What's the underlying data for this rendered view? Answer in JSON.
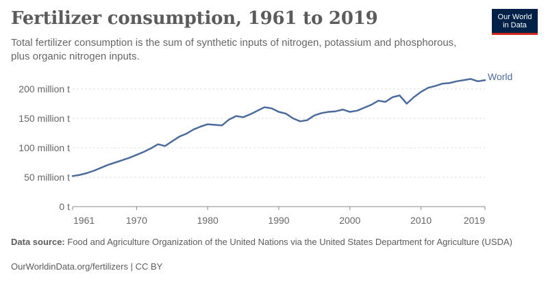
{
  "title": "Fertilizer consumption, 1961 to 2019",
  "subtitle": "Total fertilizer consumption is the sum of synthetic inputs of nitrogen, potassium and phosphorous, plus organic nitrogen inputs.",
  "logo": {
    "line1": "Our World",
    "line2": "in Data"
  },
  "footer": {
    "source_label": "Data source:",
    "source_text": "Food and Agriculture Organization of the United Nations via the United States Department for Agriculture (USDA)",
    "url": "OurWorldinData.org/fertilizers",
    "license": "CC BY"
  },
  "colors": {
    "series": "#4c6a9c",
    "grid": "#dddddd",
    "axis": "#888888",
    "text": "#5b5b5b"
  },
  "chart_data": {
    "type": "line",
    "title": "Fertilizer consumption, 1961 to 2019",
    "xlabel": "",
    "ylabel": "",
    "xlim": [
      1961,
      2019
    ],
    "ylim": [
      0,
      200
    ],
    "y_ticks": [
      0,
      50,
      100,
      150,
      200
    ],
    "y_tick_labels": [
      "0 t",
      "50 million t",
      "100 million t",
      "150 million t",
      "200 million t"
    ],
    "x_ticks": [
      1961,
      1970,
      1980,
      1990,
      2000,
      2010,
      2019
    ],
    "x_tick_labels": [
      "1961",
      "1970",
      "1980",
      "1990",
      "2000",
      "2010",
      "2019"
    ],
    "grid": "horizontal dashed",
    "series": [
      {
        "name": "World",
        "x": [
          1961,
          1962,
          1963,
          1964,
          1965,
          1966,
          1967,
          1968,
          1969,
          1970,
          1971,
          1972,
          1973,
          1974,
          1975,
          1976,
          1977,
          1978,
          1979,
          1980,
          1981,
          1982,
          1983,
          1984,
          1985,
          1986,
          1987,
          1988,
          1989,
          1990,
          1991,
          1992,
          1993,
          1994,
          1995,
          1996,
          1997,
          1998,
          1999,
          2000,
          2001,
          2002,
          2003,
          2004,
          2005,
          2006,
          2007,
          2008,
          2009,
          2010,
          2011,
          2012,
          2013,
          2014,
          2015,
          2016,
          2017,
          2018,
          2019
        ],
        "values": [
          52,
          54,
          57,
          61,
          66,
          71,
          75,
          79,
          83,
          88,
          93,
          99,
          106,
          103,
          111,
          119,
          124,
          131,
          136,
          140,
          139,
          138,
          148,
          154,
          152,
          157,
          163,
          169,
          167,
          161,
          158,
          150,
          145,
          147,
          155,
          159,
          161,
          162,
          165,
          161,
          163,
          168,
          173,
          180,
          178,
          186,
          189,
          175,
          186,
          195,
          202,
          205,
          209,
          210,
          213,
          215,
          217,
          213,
          215
        ]
      }
    ]
  }
}
